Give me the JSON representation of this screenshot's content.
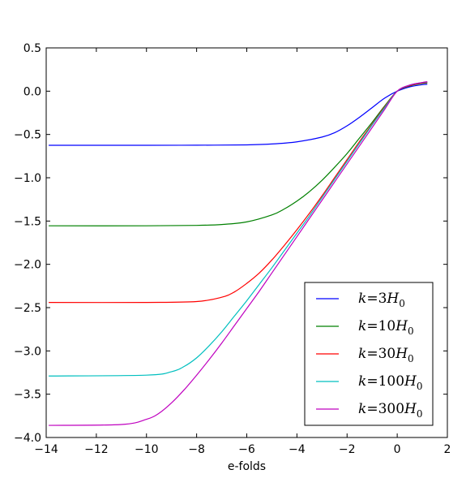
{
  "chart_data": {
    "type": "line",
    "title": "",
    "xlabel": "e-folds",
    "ylabel": "",
    "xlim": [
      -14,
      2
    ],
    "ylim": [
      -4.0,
      0.5
    ],
    "xticks": [
      -14,
      -12,
      -10,
      -8,
      -6,
      -4,
      -2,
      0,
      2
    ],
    "xtick_labels": [
      "−14",
      "−12",
      "−10",
      "−8",
      "−6",
      "−4",
      "−2",
      "0",
      "2"
    ],
    "yticks": [
      0.5,
      0.0,
      -0.5,
      -1.0,
      -1.5,
      -2.0,
      -2.5,
      -3.0,
      -3.5,
      -4.0
    ],
    "ytick_labels": [
      "0.5",
      "0.0",
      "−0.5",
      "−1.0",
      "−1.5",
      "−2.0",
      "−2.5",
      "−3.0",
      "−3.5",
      "−4.0"
    ],
    "grid": false,
    "legend_position": "lower-right",
    "series": [
      {
        "name": "k=3H0",
        "color": "#0000ff",
        "x": [
          -13.9,
          -10,
          -8,
          -6,
          -5,
          -4,
          -3,
          -2.5,
          -2,
          -1.5,
          -1,
          -0.5,
          0,
          0.5,
          1.0,
          1.2
        ],
        "y": [
          -0.625,
          -0.625,
          -0.624,
          -0.62,
          -0.61,
          -0.585,
          -0.53,
          -0.48,
          -0.4,
          -0.3,
          -0.19,
          -0.08,
          0.0,
          0.05,
          0.075,
          0.08
        ]
      },
      {
        "name": "k=10H0",
        "color": "#008000",
        "x": [
          -13.9,
          -10,
          -8,
          -7,
          -6,
          -5,
          -4.5,
          -4,
          -3.5,
          -3,
          -2.5,
          -2,
          -1.5,
          -1,
          -0.5,
          0,
          0.5,
          1.0,
          1.2
        ],
        "y": [
          -1.555,
          -1.555,
          -1.55,
          -1.54,
          -1.51,
          -1.43,
          -1.36,
          -1.27,
          -1.16,
          -1.03,
          -0.88,
          -0.72,
          -0.54,
          -0.36,
          -0.17,
          0.0,
          0.06,
          0.09,
          0.095
        ]
      },
      {
        "name": "k=30H0",
        "color": "#ff0000",
        "x": [
          -13.9,
          -10,
          -8,
          -7,
          -6.5,
          -6,
          -5.5,
          -5,
          -4.5,
          -4,
          -3.5,
          -3,
          -2.5,
          -2,
          -1.5,
          -1,
          -0.5,
          0,
          0.5,
          1.0,
          1.2
        ],
        "y": [
          -2.44,
          -2.44,
          -2.43,
          -2.38,
          -2.32,
          -2.22,
          -2.1,
          -1.95,
          -1.78,
          -1.6,
          -1.41,
          -1.21,
          -1.0,
          -0.79,
          -0.58,
          -0.38,
          -0.18,
          0.0,
          0.065,
          0.095,
          0.1
        ]
      },
      {
        "name": "k=100H0",
        "color": "#00bfbf",
        "x": [
          -13.9,
          -10,
          -9,
          -8.5,
          -8,
          -7.5,
          -7,
          -6.5,
          -6,
          -5.5,
          -5,
          -4.5,
          -4,
          -3.5,
          -3,
          -2.5,
          -2,
          -1.5,
          -1,
          -0.5,
          0,
          0.5,
          1.0,
          1.2
        ],
        "y": [
          -3.29,
          -3.28,
          -3.24,
          -3.18,
          -3.08,
          -2.94,
          -2.78,
          -2.6,
          -2.42,
          -2.23,
          -2.04,
          -1.84,
          -1.64,
          -1.44,
          -1.23,
          -1.02,
          -0.81,
          -0.6,
          -0.39,
          -0.19,
          0.0,
          0.07,
          0.1,
          0.105
        ]
      },
      {
        "name": "k=300H0",
        "color": "#bf00bf",
        "x": [
          -13.9,
          -11,
          -10,
          -9.5,
          -9,
          -8.5,
          -8,
          -7.5,
          -7,
          -6.5,
          -6,
          -5.5,
          -5,
          -4.5,
          -4,
          -3.5,
          -3,
          -2.5,
          -2,
          -1.5,
          -1,
          -0.5,
          0,
          0.5,
          1.0,
          1.2
        ],
        "y": [
          -3.86,
          -3.85,
          -3.79,
          -3.72,
          -3.6,
          -3.45,
          -3.28,
          -3.1,
          -2.91,
          -2.71,
          -2.51,
          -2.31,
          -2.1,
          -1.89,
          -1.68,
          -1.47,
          -1.26,
          -1.05,
          -0.84,
          -0.63,
          -0.42,
          -0.21,
          0.0,
          0.07,
          0.1,
          0.11
        ]
      }
    ]
  },
  "legend": {
    "items": [
      {
        "prefix": "k",
        "eq": "=",
        "num": "3",
        "var": "H",
        "sub": "0"
      },
      {
        "prefix": "k",
        "eq": "=",
        "num": "10",
        "var": "H",
        "sub": "0"
      },
      {
        "prefix": "k",
        "eq": "=",
        "num": "30",
        "var": "H",
        "sub": "0"
      },
      {
        "prefix": "k",
        "eq": "=",
        "num": "100",
        "var": "H",
        "sub": "0"
      },
      {
        "prefix": "k",
        "eq": "=",
        "num": "300",
        "var": "H",
        "sub": "0"
      }
    ]
  }
}
